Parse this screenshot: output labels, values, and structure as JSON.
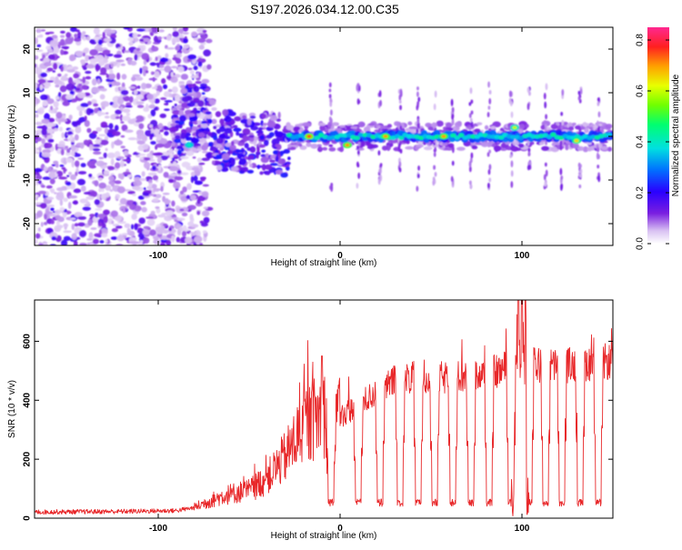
{
  "title": "S197.2026.034.12.00.C35",
  "chart_data": [
    {
      "type": "heatmap",
      "name": "spectrogram",
      "xlabel": "Height of straight line (km)",
      "ylabel": "Frequency (Hz)",
      "xlim": [
        -168,
        150
      ],
      "ylim": [
        -25,
        25
      ],
      "xticks": [
        -100,
        0,
        100
      ],
      "yticks": [
        -20,
        -10,
        0,
        10,
        20
      ],
      "colorbar": {
        "label": "Normalized spectral amplitude",
        "range": [
          0.0,
          0.85
        ],
        "ticks": [
          0.0,
          0.2,
          0.4,
          0.6,
          0.8
        ],
        "tick_labels": [
          "0.0",
          "0.2",
          "0.4",
          "0.6",
          "0.8"
        ]
      },
      "regions": [
        {
          "name": "noise",
          "x_range": [
            -168,
            -72
          ],
          "freq_range": [
            -25,
            25
          ],
          "amplitude": 0.1
        },
        {
          "name": "emerging",
          "x_range": [
            -92,
            -28
          ],
          "freq_center": [
            5,
            0
          ],
          "amplitude": 0.2
        },
        {
          "name": "signal",
          "x_range": [
            -28,
            150
          ],
          "freq_center": 0,
          "amplitude": 0.35
        }
      ],
      "hot_spots": [
        {
          "x": -83,
          "freq": -2,
          "amplitude": 0.4
        },
        {
          "x": -17,
          "freq": 0,
          "amplitude": 0.75
        },
        {
          "x": 4,
          "freq": -2,
          "amplitude": 0.7
        },
        {
          "x": 25,
          "freq": 0,
          "amplitude": 0.7
        },
        {
          "x": 57,
          "freq": 0,
          "amplitude": 0.7
        },
        {
          "x": 96,
          "freq": 2,
          "amplitude": 0.6
        },
        {
          "x": 130,
          "freq": -1,
          "amplitude": 0.65
        }
      ]
    },
    {
      "type": "line",
      "name": "snr",
      "xlabel": "Height of straight line (km)",
      "ylabel": "SNR (10 * v/v)",
      "xlim": [
        -168,
        150
      ],
      "ylim": [
        0,
        740
      ],
      "xticks": [
        -100,
        0,
        100
      ],
      "yticks": [
        0,
        200,
        400,
        600
      ],
      "color": "#e8282a",
      "envelope_x": [
        -168,
        -120,
        -90,
        -80,
        -70,
        -60,
        -50,
        -40,
        -30,
        -20,
        -10,
        0,
        10,
        20,
        30,
        40,
        60,
        80,
        90,
        100,
        110,
        120,
        135,
        150
      ],
      "envelope_y": [
        20,
        22,
        25,
        35,
        60,
        80,
        90,
        130,
        200,
        300,
        340,
        340,
        380,
        420,
        460,
        470,
        470,
        480,
        500,
        520,
        510,
        510,
        520,
        525
      ],
      "dip_x": [
        -5,
        10,
        22,
        33,
        43,
        52,
        62,
        72,
        82,
        94,
        104,
        113,
        122,
        132,
        142
      ],
      "dip_y": 40,
      "spike_x": [
        -10,
        98,
        100,
        102
      ],
      "spike_y": [
        550,
        740,
        720,
        700
      ],
      "sample_step": 0.25
    }
  ]
}
